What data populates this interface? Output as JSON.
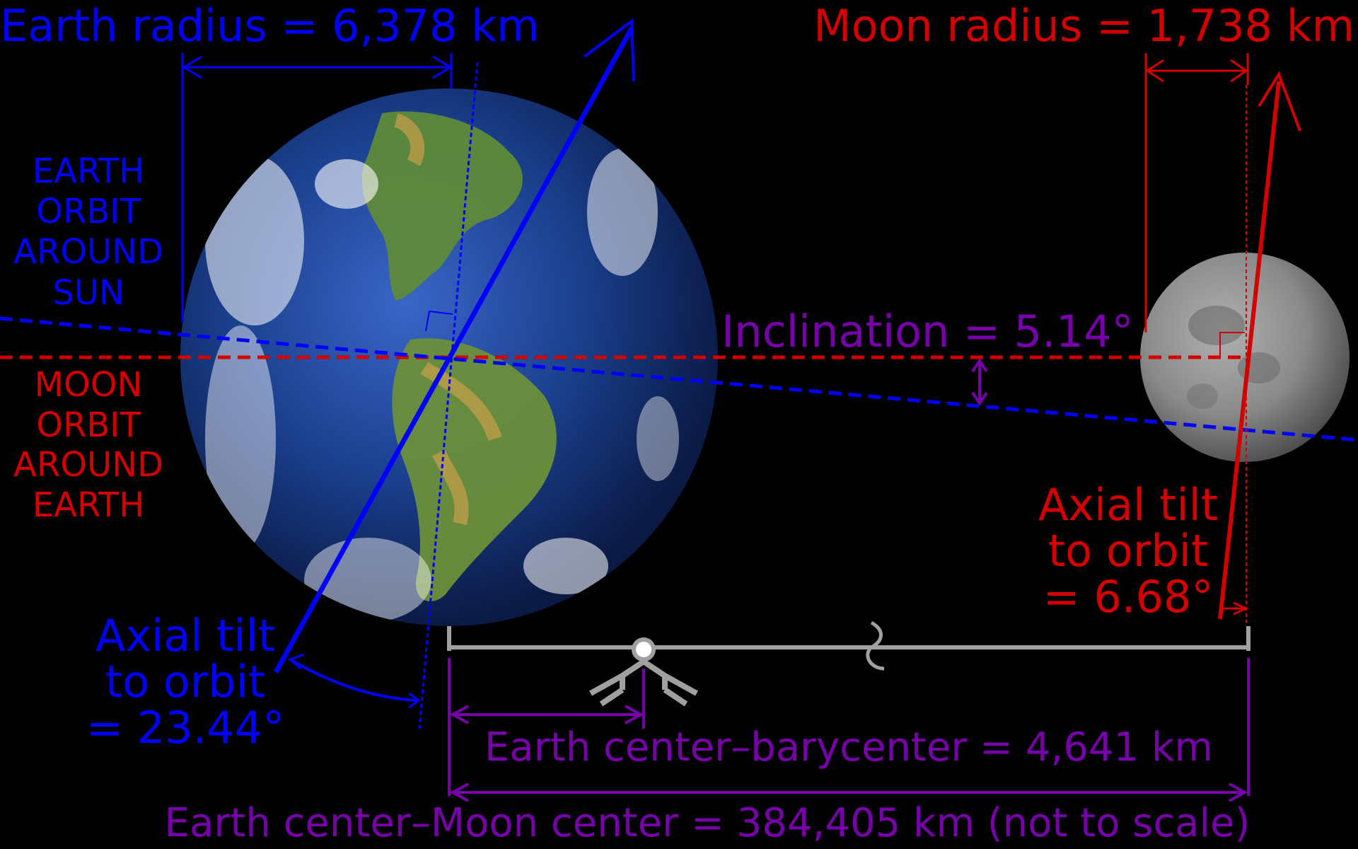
{
  "labels": {
    "earth_radius": "Earth radius = 6,378 km",
    "moon_radius": "Moon radius = 1,738 km",
    "earth_orbit": [
      "EARTH",
      "ORBIT",
      "AROUND",
      "SUN"
    ],
    "moon_orbit": [
      "MOON",
      "ORBIT",
      "AROUND",
      "EARTH"
    ],
    "inclination": "Inclination = 5.14°",
    "earth_tilt": [
      "Axial tilt",
      "to orbit",
      "= 23.44°"
    ],
    "moon_tilt": [
      "Axial tilt",
      "to orbit",
      "= 6.68°"
    ],
    "barycenter": "Earth center–barycenter = 4,641 km",
    "earth_moon": "Earth center–Moon center = 384,405 km (not to scale)"
  },
  "colors": {
    "background": "#000000",
    "earth": "#0000ff",
    "moon": "#d40000",
    "purple": "#7700aa",
    "gray": "#a0a0a0",
    "ocean": "#1a3f8c",
    "land": "#5f8a3a",
    "moon_surface": "#8a8a8a"
  }
}
